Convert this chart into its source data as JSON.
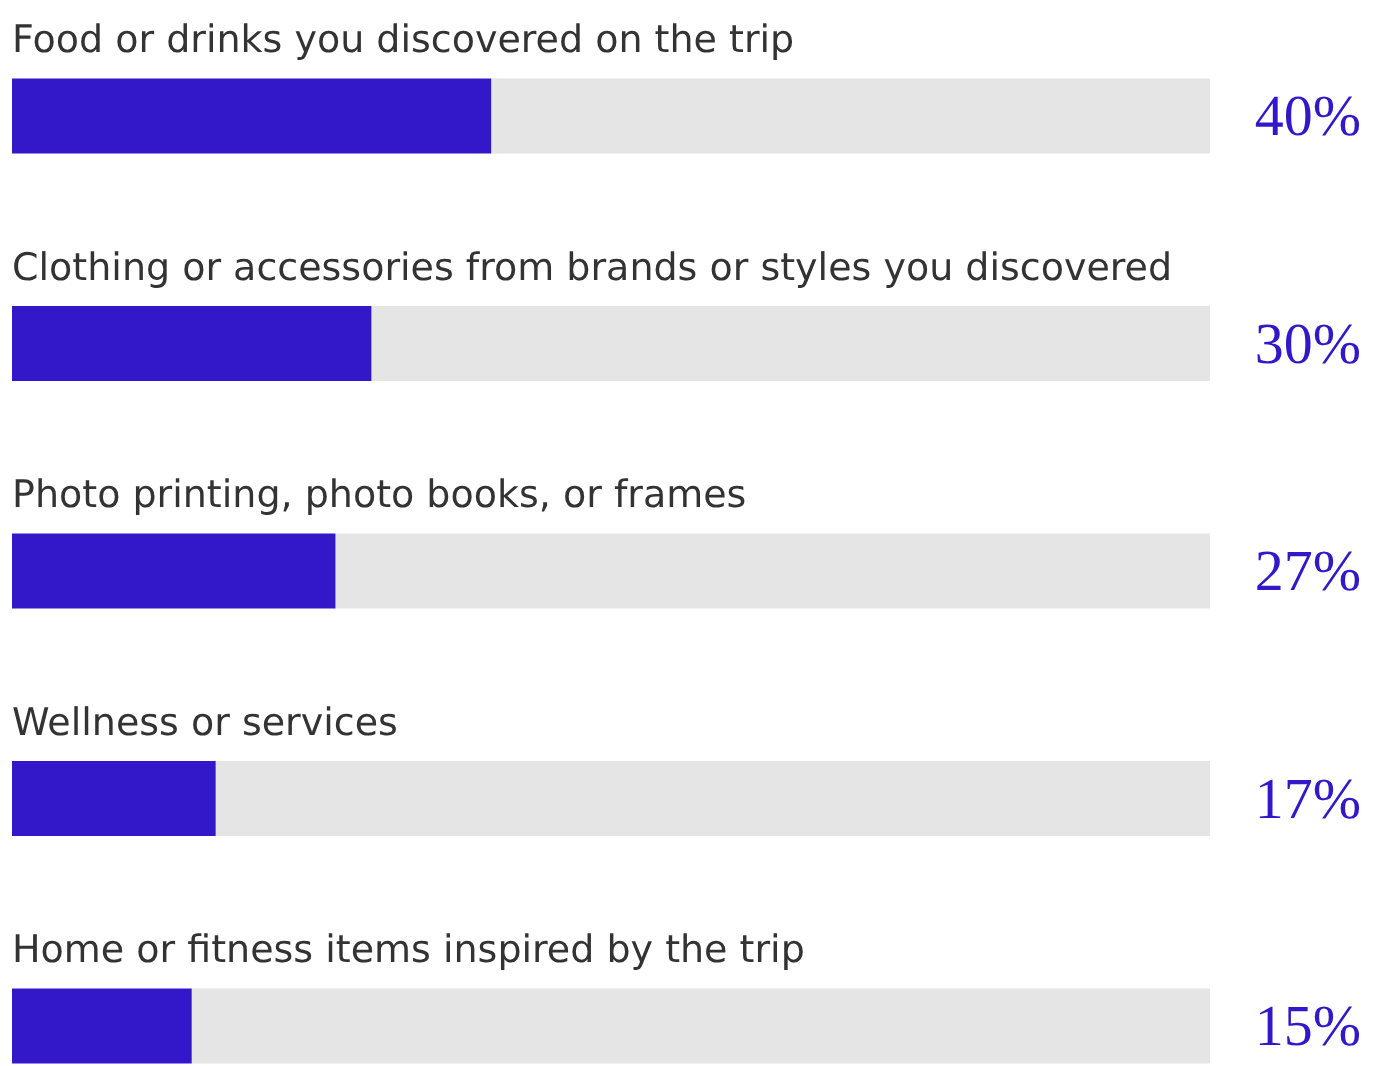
{
  "chart_data": {
    "type": "bar",
    "orientation": "horizontal",
    "stacked": true,
    "categories": [
      "Food or drinks you discovered on the trip",
      "Clothing or accessories from brands or styles you discovered",
      "Photo printing, photo books, or frames",
      "Wellness or services",
      "Home or fitness items inspired by the trip"
    ],
    "series": [
      {
        "color": "#3218c8",
        "values": [
          40,
          30,
          27,
          17,
          15
        ],
        "value_labels": [
          "40%",
          "30%",
          "27%",
          "17%",
          "15%"
        ]
      },
      {
        "color": "#e5e5e5",
        "values": [
          60,
          70,
          73,
          83,
          85
        ]
      }
    ],
    "xlim": [
      0,
      100
    ],
    "tick_labels": false,
    "legend": false
  }
}
